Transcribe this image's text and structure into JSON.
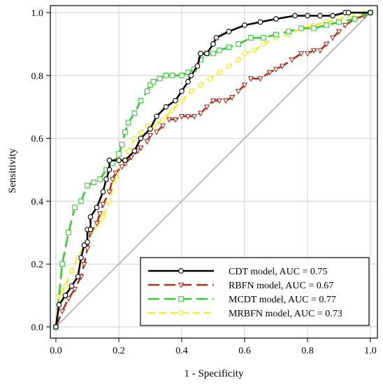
{
  "chart_data": {
    "type": "line",
    "title": "",
    "xlabel": "1 - Specificity",
    "ylabel": "Sensitivity",
    "xlim": [
      0,
      1
    ],
    "ylim": [
      0,
      1
    ],
    "xticks": [
      "0.0",
      "0.2",
      "0.4",
      "0.6",
      "0.8",
      "1.0"
    ],
    "yticks": [
      "0.0",
      "0.2",
      "0.4",
      "0.6",
      "0.8",
      "1.0"
    ],
    "grid": true,
    "legend_position": "bottom-right",
    "reference_line": {
      "x": [
        0,
        1
      ],
      "y": [
        0,
        1
      ],
      "color": "#c0c0c0"
    },
    "series": [
      {
        "name": "CDT model, AUC = 0.75",
        "color": "#000000",
        "marker": "circle",
        "dash": "solid",
        "x": [
          0.0,
          0.01,
          0.03,
          0.05,
          0.07,
          0.08,
          0.09,
          0.1,
          0.1,
          0.11,
          0.11,
          0.13,
          0.15,
          0.16,
          0.17,
          0.17,
          0.2,
          0.22,
          0.25,
          0.27,
          0.3,
          0.32,
          0.35,
          0.38,
          0.4,
          0.42,
          0.43,
          0.45,
          0.46,
          0.48,
          0.5,
          0.51,
          0.55,
          0.6,
          0.65,
          0.7,
          0.76,
          0.8,
          0.84,
          0.88,
          0.92,
          0.93,
          1.0
        ],
        "y": [
          0.0,
          0.07,
          0.1,
          0.13,
          0.16,
          0.22,
          0.26,
          0.27,
          0.31,
          0.31,
          0.35,
          0.38,
          0.43,
          0.47,
          0.5,
          0.53,
          0.53,
          0.53,
          0.56,
          0.6,
          0.63,
          0.67,
          0.7,
          0.72,
          0.75,
          0.78,
          0.8,
          0.83,
          0.87,
          0.87,
          0.9,
          0.92,
          0.94,
          0.96,
          0.97,
          0.98,
          0.99,
          0.99,
          0.99,
          0.99,
          1.0,
          1.0,
          1.0
        ]
      },
      {
        "name": "RBFN model, AUC = 0.67",
        "color": "#b0321e",
        "marker": "triangle-down",
        "dash": "long-dash",
        "x": [
          0.0,
          0.02,
          0.04,
          0.06,
          0.08,
          0.09,
          0.1,
          0.11,
          0.13,
          0.14,
          0.15,
          0.17,
          0.18,
          0.19,
          0.21,
          0.22,
          0.24,
          0.26,
          0.27,
          0.29,
          0.3,
          0.32,
          0.34,
          0.36,
          0.38,
          0.4,
          0.42,
          0.44,
          0.46,
          0.48,
          0.5,
          0.52,
          0.54,
          0.56,
          0.58,
          0.6,
          0.62,
          0.65,
          0.68,
          0.7,
          0.72,
          0.75,
          0.78,
          0.8,
          0.82,
          0.84,
          0.86,
          0.88,
          0.9,
          0.92,
          0.95,
          0.98,
          1.0
        ],
        "y": [
          0.0,
          0.05,
          0.09,
          0.12,
          0.16,
          0.2,
          0.25,
          0.3,
          0.33,
          0.36,
          0.39,
          0.43,
          0.47,
          0.49,
          0.51,
          0.52,
          0.54,
          0.56,
          0.57,
          0.59,
          0.61,
          0.62,
          0.64,
          0.66,
          0.66,
          0.67,
          0.67,
          0.67,
          0.68,
          0.7,
          0.72,
          0.72,
          0.72,
          0.73,
          0.75,
          0.77,
          0.79,
          0.79,
          0.81,
          0.82,
          0.83,
          0.85,
          0.87,
          0.87,
          0.88,
          0.88,
          0.9,
          0.92,
          0.94,
          0.96,
          0.98,
          0.99,
          1.0
        ]
      },
      {
        "name": "MCDT model, AUC = 0.77",
        "color": "#33cc33",
        "marker": "square",
        "dash": "long-dash",
        "x": [
          0.0,
          0.02,
          0.04,
          0.06,
          0.08,
          0.1,
          0.12,
          0.14,
          0.16,
          0.18,
          0.2,
          0.21,
          0.22,
          0.23,
          0.25,
          0.27,
          0.29,
          0.3,
          0.31,
          0.33,
          0.35,
          0.37,
          0.4,
          0.42,
          0.44,
          0.46,
          0.48,
          0.5,
          0.52,
          0.55,
          0.58,
          0.62,
          0.66,
          0.7,
          0.74,
          0.78,
          0.82,
          0.86,
          0.9,
          0.95,
          1.0
        ],
        "y": [
          0.0,
          0.2,
          0.3,
          0.38,
          0.4,
          0.45,
          0.46,
          0.47,
          0.5,
          0.52,
          0.55,
          0.58,
          0.62,
          0.65,
          0.68,
          0.72,
          0.75,
          0.77,
          0.78,
          0.79,
          0.8,
          0.8,
          0.8,
          0.81,
          0.82,
          0.85,
          0.87,
          0.87,
          0.88,
          0.89,
          0.9,
          0.92,
          0.92,
          0.93,
          0.94,
          0.95,
          0.95,
          0.96,
          0.97,
          0.98,
          1.0
        ]
      },
      {
        "name": "MRBFN model, AUC = 0.73",
        "color": "#f0f020",
        "marker": "diamond",
        "dash": "short-dash",
        "x": [
          0.0,
          0.01,
          0.03,
          0.05,
          0.07,
          0.09,
          0.11,
          0.13,
          0.15,
          0.17,
          0.19,
          0.21,
          0.23,
          0.25,
          0.27,
          0.29,
          0.31,
          0.34,
          0.37,
          0.4,
          0.43,
          0.46,
          0.49,
          0.52,
          0.55,
          0.58,
          0.6,
          0.63,
          0.66,
          0.7,
          0.74,
          0.78,
          0.82,
          0.86,
          0.9,
          0.94,
          0.98,
          1.0
        ],
        "y": [
          0.0,
          0.1,
          0.13,
          0.18,
          0.22,
          0.26,
          0.3,
          0.32,
          0.35,
          0.4,
          0.48,
          0.52,
          0.56,
          0.6,
          0.62,
          0.64,
          0.64,
          0.66,
          0.69,
          0.72,
          0.75,
          0.77,
          0.79,
          0.81,
          0.83,
          0.85,
          0.87,
          0.88,
          0.9,
          0.92,
          0.93,
          0.95,
          0.96,
          0.97,
          0.98,
          0.99,
          1.0,
          1.0
        ]
      }
    ]
  }
}
